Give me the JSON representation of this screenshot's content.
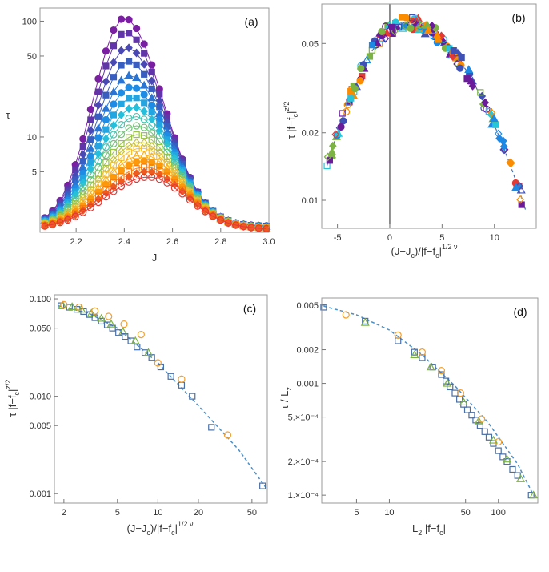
{
  "chart_data": [
    {
      "id": "a",
      "type": "line",
      "panel_label": "(a)",
      "xlabel": "J",
      "ylabel": "τ",
      "yscale": "log",
      "xlim": [
        2.05,
        3.0
      ],
      "ylim": [
        1.5,
        130
      ],
      "xticks": [
        "2.2",
        "2.4",
        "2.6",
        "2.8",
        "3.0"
      ],
      "yticks": [
        "5",
        "10",
        "50",
        "100"
      ],
      "n_series": 18,
      "x_samples": 30,
      "series_peak_tau": [
        106,
        80,
        59,
        45,
        34,
        27,
        22,
        18,
        15,
        12.5,
        10.5,
        9,
        8,
        7,
        6.2,
        5.5,
        5,
        4.5
      ],
      "tail_tau_at_J3": [
        1.7,
        1.6
      ],
      "colors": [
        "#7b1fa2",
        "#3f51b5",
        "#1e88e5",
        "#26c6da",
        "#8bc34a",
        "#fbc02d",
        "#fb8c00",
        "#e53935"
      ]
    },
    {
      "id": "b",
      "type": "scatter",
      "panel_label": "(b)",
      "xlabel_parts": [
        "(J−J",
        "c",
        ")/|f−f",
        "c",
        "|",
        "1/2 ν"
      ],
      "ylabel_parts": [
        "τ |f−f",
        "c",
        "|",
        "z/2"
      ],
      "yscale": "log",
      "xlim": [
        -6.5,
        14
      ],
      "ylim": [
        0.0075,
        0.075
      ],
      "xticks": [
        "-5",
        "0",
        "5",
        "10"
      ],
      "yticks": [
        "0.01",
        "0.02",
        "0.05"
      ],
      "collapse_curve": {
        "x_peak": 1.5,
        "y_peak": 0.062,
        "x_left_end": -6,
        "y_left_end": 0.011,
        "x_right_end": 13,
        "y_right_end": 0.009
      },
      "series_colors": [
        "#6a1b9a",
        "#3f51b5",
        "#1e88e5",
        "#26c6da",
        "#7cb342",
        "#fb8c00",
        "#e53935"
      ]
    },
    {
      "id": "c",
      "type": "scatter",
      "panel_label": "(c)",
      "xlabel_parts": [
        "(J−J",
        "c",
        ")/|f−f",
        "c",
        "|",
        "1/2 ν"
      ],
      "ylabel_parts": [
        "τ |f−f",
        "c",
        "|",
        "z/2"
      ],
      "xscale": "log",
      "yscale": "log",
      "xlim": [
        1.7,
        65
      ],
      "ylim": [
        0.0008,
        0.11
      ],
      "xticks": [
        "2",
        "5",
        "10",
        "20",
        "50"
      ],
      "yticks": [
        "0.001",
        "0.005",
        "0.010",
        "0.050",
        "0.100"
      ],
      "series": [
        {
          "name": "squares",
          "color": "#4a6fa5",
          "marker": "square",
          "x": [
            1.9,
            2.2,
            2.5,
            2.8,
            3.1,
            3.4,
            3.8,
            4.2,
            4.6,
            5.1,
            5.7,
            6.3,
            7,
            8,
            9,
            10.5,
            12.5,
            15,
            18,
            25,
            60
          ],
          "y": [
            0.085,
            0.082,
            0.078,
            0.074,
            0.069,
            0.064,
            0.059,
            0.054,
            0.05,
            0.045,
            0.041,
            0.037,
            0.032,
            0.028,
            0.025,
            0.02,
            0.016,
            0.013,
            0.01,
            0.0048,
            0.0012
          ]
        },
        {
          "name": "triangles",
          "color": "#7cb342",
          "marker": "triangle",
          "x": [
            1.95,
            2.3,
            2.7,
            3.2,
            3.8,
            4.5,
            5.5,
            6.8,
            8.5
          ],
          "y": [
            0.086,
            0.083,
            0.078,
            0.071,
            0.063,
            0.055,
            0.046,
            0.037,
            0.028
          ]
        },
        {
          "name": "circles",
          "color": "#f0a030",
          "marker": "circle",
          "x": [
            2.0,
            2.6,
            3.4,
            4.3,
            5.6,
            7.5,
            10,
            15,
            33
          ],
          "y": [
            0.087,
            0.082,
            0.075,
            0.066,
            0.055,
            0.043,
            0.022,
            0.015,
            0.004
          ]
        }
      ],
      "fit": {
        "x": [
          1.8,
          3,
          5,
          10,
          20,
          40,
          65
        ],
        "y": [
          0.085,
          0.072,
          0.05,
          0.022,
          0.008,
          0.0028,
          0.0011
        ]
      }
    },
    {
      "id": "d",
      "type": "scatter",
      "panel_label": "(d)",
      "xlabel_parts": [
        "L",
        "2",
        " |f−f",
        "c",
        "|"
      ],
      "ylabel_parts": [
        "τ / L",
        "z"
      ],
      "xscale": "log",
      "yscale": "log",
      "xlim": [
        2.4,
        230
      ],
      "ylim": [
        8.5e-05,
        0.0058
      ],
      "xticks": [
        "5",
        "10",
        "50",
        "100"
      ],
      "yticks": [
        "1.×10⁻⁴",
        "2.×10⁻⁴",
        "5.×10⁻⁴",
        "0.001",
        "0.002",
        "0.005"
      ],
      "series": [
        {
          "name": "squares",
          "color": "#4a6fa5",
          "marker": "square",
          "x": [
            2.5,
            6,
            12,
            17,
            20,
            25,
            30,
            33,
            36,
            40,
            44,
            48,
            52,
            57,
            62,
            68,
            75,
            82,
            90,
            100,
            110,
            120,
            135,
            150,
            200
          ],
          "y": [
            0.0048,
            0.0036,
            0.0024,
            0.0019,
            0.0017,
            0.0014,
            0.0012,
            0.00105,
            0.00093,
            0.00082,
            0.00072,
            0.00065,
            0.00058,
            0.00052,
            0.00047,
            0.00042,
            0.00037,
            0.00033,
            0.00029,
            0.00025,
            0.00022,
            0.0002,
            0.00017,
            0.00015,
            0.0001
          ]
        },
        {
          "name": "triangles",
          "color": "#7cb342",
          "marker": "triangle",
          "x": [
            6,
            17,
            24,
            34,
            48,
            66,
            90,
            120,
            160,
            210
          ],
          "y": [
            0.0035,
            0.0018,
            0.0014,
            0.001,
            0.00068,
            0.00046,
            0.00031,
            0.00021,
            0.00014,
            0.0001
          ]
        },
        {
          "name": "circles",
          "color": "#f0a030",
          "marker": "circle",
          "x": [
            4,
            12,
            20,
            30,
            45,
            70,
            100
          ],
          "y": [
            0.0041,
            0.0027,
            0.0019,
            0.0013,
            0.00082,
            0.00048,
            0.0003
          ]
        }
      ],
      "fit": {
        "x": [
          2.5,
          5,
          10,
          20,
          40,
          80,
          150,
          210
        ],
        "y": [
          0.0049,
          0.0041,
          0.003,
          0.0018,
          0.00095,
          0.00045,
          0.00019,
          0.0001
        ]
      }
    }
  ]
}
